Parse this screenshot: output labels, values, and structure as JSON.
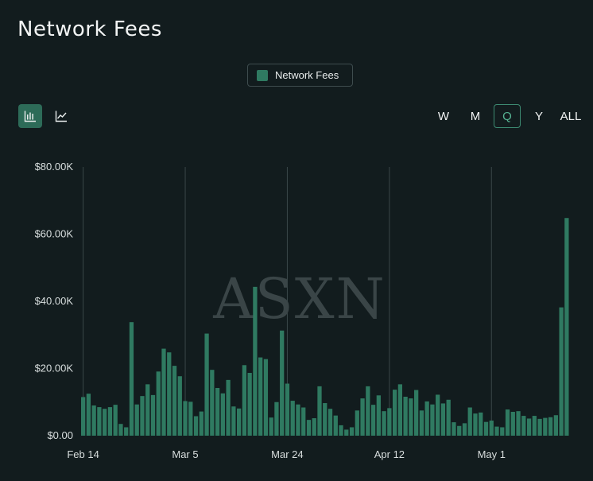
{
  "header": {
    "title": "Network Fees"
  },
  "legend": {
    "label": "Network Fees",
    "color": "#2f7a61"
  },
  "toolbar": {
    "chart_types": [
      {
        "name": "bar-chart-icon",
        "active": true
      },
      {
        "name": "line-chart-icon",
        "active": false
      }
    ],
    "ranges": [
      "W",
      "M",
      "Q",
      "Y",
      "ALL"
    ],
    "active_range": "Q"
  },
  "watermark": "ASXN",
  "chart_data": {
    "type": "bar",
    "series": [
      {
        "name": "Network Fees",
        "values": [
          11500,
          12500,
          9000,
          8500,
          8000,
          8500,
          9200,
          3500,
          2500,
          33800,
          9300,
          11800,
          15300,
          12100,
          19100,
          25900,
          24800,
          20800,
          17700,
          10300,
          10100,
          5800,
          7200,
          30400,
          19600,
          14200,
          12600,
          16600,
          8700,
          8100,
          21000,
          18700,
          44300,
          23300,
          22800,
          5400,
          10000,
          31300,
          15500,
          10400,
          9300,
          8400,
          4700,
          5200,
          14700,
          9700,
          8000,
          6000,
          3100,
          1800,
          2500,
          7500,
          11100,
          14700,
          9200,
          12000,
          7300,
          8200,
          13700,
          15300,
          11600,
          11100,
          13600,
          7500,
          10200,
          9300,
          12200,
          9600,
          10700,
          4000,
          2900,
          3700,
          8400,
          6600,
          6900,
          4100,
          4500,
          2700,
          2500,
          7800,
          7100,
          7300,
          5900,
          5100,
          5900,
          5000,
          5300,
          5500,
          6100,
          38200,
          64800
        ]
      }
    ],
    "x_ticks": [
      "Feb 14",
      "Mar 5",
      "Mar 24",
      "Apr 12",
      "May 1"
    ],
    "y_ticks": [
      "$0.00",
      "$20.00K",
      "$40.00K",
      "$60.00K",
      "$80.00K"
    ],
    "ylim": [
      0,
      80000
    ],
    "grid": {
      "vertical": true,
      "horizontal": false
    }
  }
}
